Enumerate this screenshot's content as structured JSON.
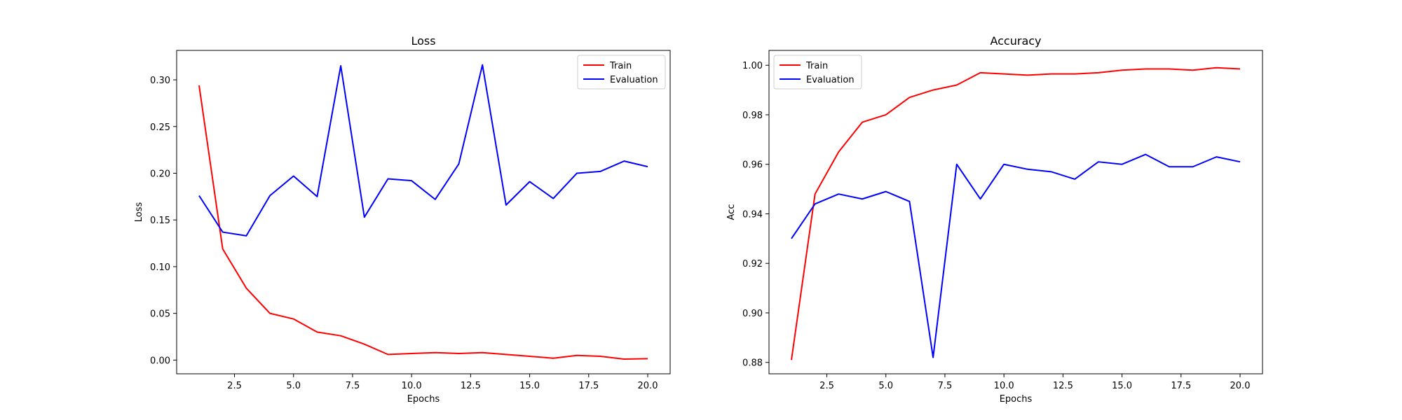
{
  "chart_data": [
    {
      "type": "line",
      "title": "Loss",
      "xlabel": "Epochs",
      "ylabel": "Loss",
      "xlim": [
        0.05,
        20.95
      ],
      "ylim": [
        -0.0147,
        0.3315
      ],
      "xticks": [
        2.5,
        5.0,
        7.5,
        10.0,
        12.5,
        15.0,
        17.5,
        20.0
      ],
      "xtick_labels": [
        "2.5",
        "5.0",
        "7.5",
        "10.0",
        "12.5",
        "15.0",
        "17.5",
        "20.0"
      ],
      "yticks": [
        0.0,
        0.05,
        0.1,
        0.15,
        0.2,
        0.25,
        0.3
      ],
      "ytick_labels": [
        "0.00",
        "0.05",
        "0.10",
        "0.15",
        "0.20",
        "0.25",
        "0.30"
      ],
      "grid": false,
      "legend": "top-right",
      "x": [
        1,
        2,
        3,
        4,
        5,
        6,
        7,
        8,
        9,
        10,
        11,
        12,
        13,
        14,
        15,
        16,
        17,
        18,
        19,
        20
      ],
      "series": [
        {
          "name": "Train",
          "color": "#ff0000",
          "values": [
            0.294,
            0.119,
            0.077,
            0.05,
            0.044,
            0.03,
            0.026,
            0.017,
            0.006,
            0.007,
            0.008,
            0.007,
            0.008,
            0.006,
            0.004,
            0.002,
            0.005,
            0.004,
            0.001,
            0.0015
          ]
        },
        {
          "name": "Evaluation",
          "color": "#0000ff",
          "values": [
            0.176,
            0.137,
            0.133,
            0.176,
            0.197,
            0.175,
            0.315,
            0.153,
            0.194,
            0.192,
            0.172,
            0.21,
            0.316,
            0.166,
            0.191,
            0.173,
            0.2,
            0.202,
            0.213,
            0.207
          ]
        }
      ]
    },
    {
      "type": "line",
      "title": "Accuracy",
      "xlabel": "Epochs",
      "ylabel": "Acc",
      "xlim": [
        0.05,
        20.95
      ],
      "ylim": [
        0.8754,
        1.006
      ],
      "xticks": [
        2.5,
        5.0,
        7.5,
        10.0,
        12.5,
        15.0,
        17.5,
        20.0
      ],
      "xtick_labels": [
        "2.5",
        "5.0",
        "7.5",
        "10.0",
        "12.5",
        "15.0",
        "17.5",
        "20.0"
      ],
      "yticks": [
        0.88,
        0.9,
        0.92,
        0.94,
        0.96,
        0.98,
        1.0
      ],
      "ytick_labels": [
        "0.88",
        "0.90",
        "0.92",
        "0.94",
        "0.96",
        "0.98",
        "1.00"
      ],
      "grid": false,
      "legend": "top-left",
      "x": [
        1,
        2,
        3,
        4,
        5,
        6,
        7,
        8,
        9,
        10,
        11,
        12,
        13,
        14,
        15,
        16,
        17,
        18,
        19,
        20
      ],
      "series": [
        {
          "name": "Train",
          "color": "#ff0000",
          "values": [
            0.881,
            0.948,
            0.965,
            0.977,
            0.98,
            0.987,
            0.99,
            0.992,
            0.997,
            0.9965,
            0.996,
            0.9965,
            0.9965,
            0.997,
            0.998,
            0.9985,
            0.9985,
            0.998,
            0.999,
            0.9985
          ]
        },
        {
          "name": "Evaluation",
          "color": "#0000ff",
          "values": [
            0.93,
            0.944,
            0.948,
            0.946,
            0.949,
            0.945,
            0.882,
            0.96,
            0.946,
            0.96,
            0.958,
            0.957,
            0.954,
            0.961,
            0.96,
            0.964,
            0.959,
            0.959,
            0.963,
            0.961
          ]
        }
      ]
    }
  ]
}
